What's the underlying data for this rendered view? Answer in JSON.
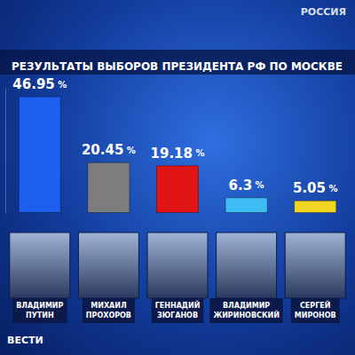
{
  "chart_data": {
    "type": "bar",
    "title": "РЕЗУЛЬТАТЫ ВЫБОРОВ ПРЕЗИДЕНТА РФ ПО МОСКВЕ",
    "categories": [
      "ВЛАДИМИР ПУТИН",
      "МИХАИЛ ПРОХОРОВ",
      "ГЕННАДИЙ ЗЮГАНОВ",
      "ВЛАДИМИР ЖИРИНОВСКИЙ",
      "СЕРГЕЙ МИРОНОВ"
    ],
    "values": [
      46.95,
      20.45,
      19.18,
      6.3,
      5.05
    ],
    "value_labels": [
      "46.95 %",
      "20.45 %",
      "19.18 %",
      "6.3 %",
      "5.05 %"
    ],
    "colors": [
      "#1f5ff0",
      "#7d7d7d",
      "#e01414",
      "#3cbcf2",
      "#f2d422"
    ],
    "ylim": [
      0,
      50
    ],
    "grid": false,
    "data_labels": true,
    "tick_labels": "x",
    "annotations": [
      "РОССИЯ",
      "ВЕСТИ"
    ]
  }
}
